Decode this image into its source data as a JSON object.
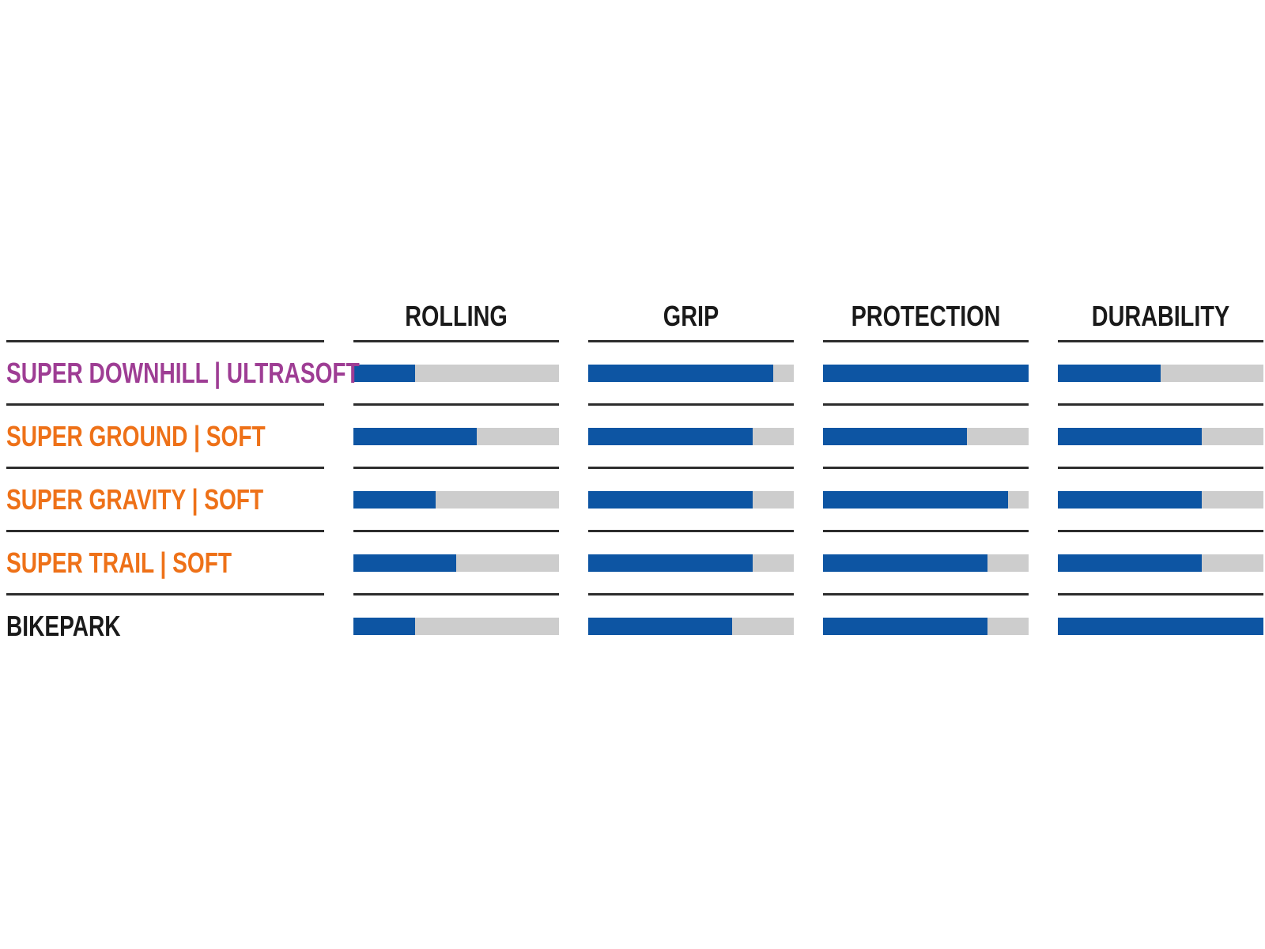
{
  "chart_data": {
    "type": "bar",
    "orientation": "horizontal",
    "title": "",
    "scale_max": 100,
    "legend": "none",
    "grid": "row-divider-lines-only",
    "columns": [
      "ROLLING",
      "GRIP",
      "PROTECTION",
      "DURABILITY"
    ],
    "rows": [
      {
        "label": "SUPER DOWNHILL | ULTRASOFT",
        "label_color": "#9e3d94",
        "values": {
          "rolling": 30,
          "grip": 90,
          "protection": 100,
          "durability": 50
        }
      },
      {
        "label": "SUPER GROUND | SOFT",
        "label_color": "#ee7118",
        "values": {
          "rolling": 60,
          "grip": 80,
          "protection": 70,
          "durability": 70
        }
      },
      {
        "label": "SUPER GRAVITY | SOFT",
        "label_color": "#ee7118",
        "values": {
          "rolling": 40,
          "grip": 80,
          "protection": 90,
          "durability": 70
        }
      },
      {
        "label": "SUPER TRAIL | SOFT",
        "label_color": "#ee7118",
        "values": {
          "rolling": 50,
          "grip": 80,
          "protection": 80,
          "durability": 70
        }
      },
      {
        "label": "BIKEPARK",
        "label_color": "#1a1a1a",
        "values": {
          "rolling": 30,
          "grip": 70,
          "protection": 80,
          "durability": 100
        }
      }
    ],
    "colors": {
      "bar_fill": "#0d55a3",
      "bar_track": "#cdcdcd",
      "divider": "#2d2d2d",
      "header_text": "#1a1a1a"
    }
  }
}
